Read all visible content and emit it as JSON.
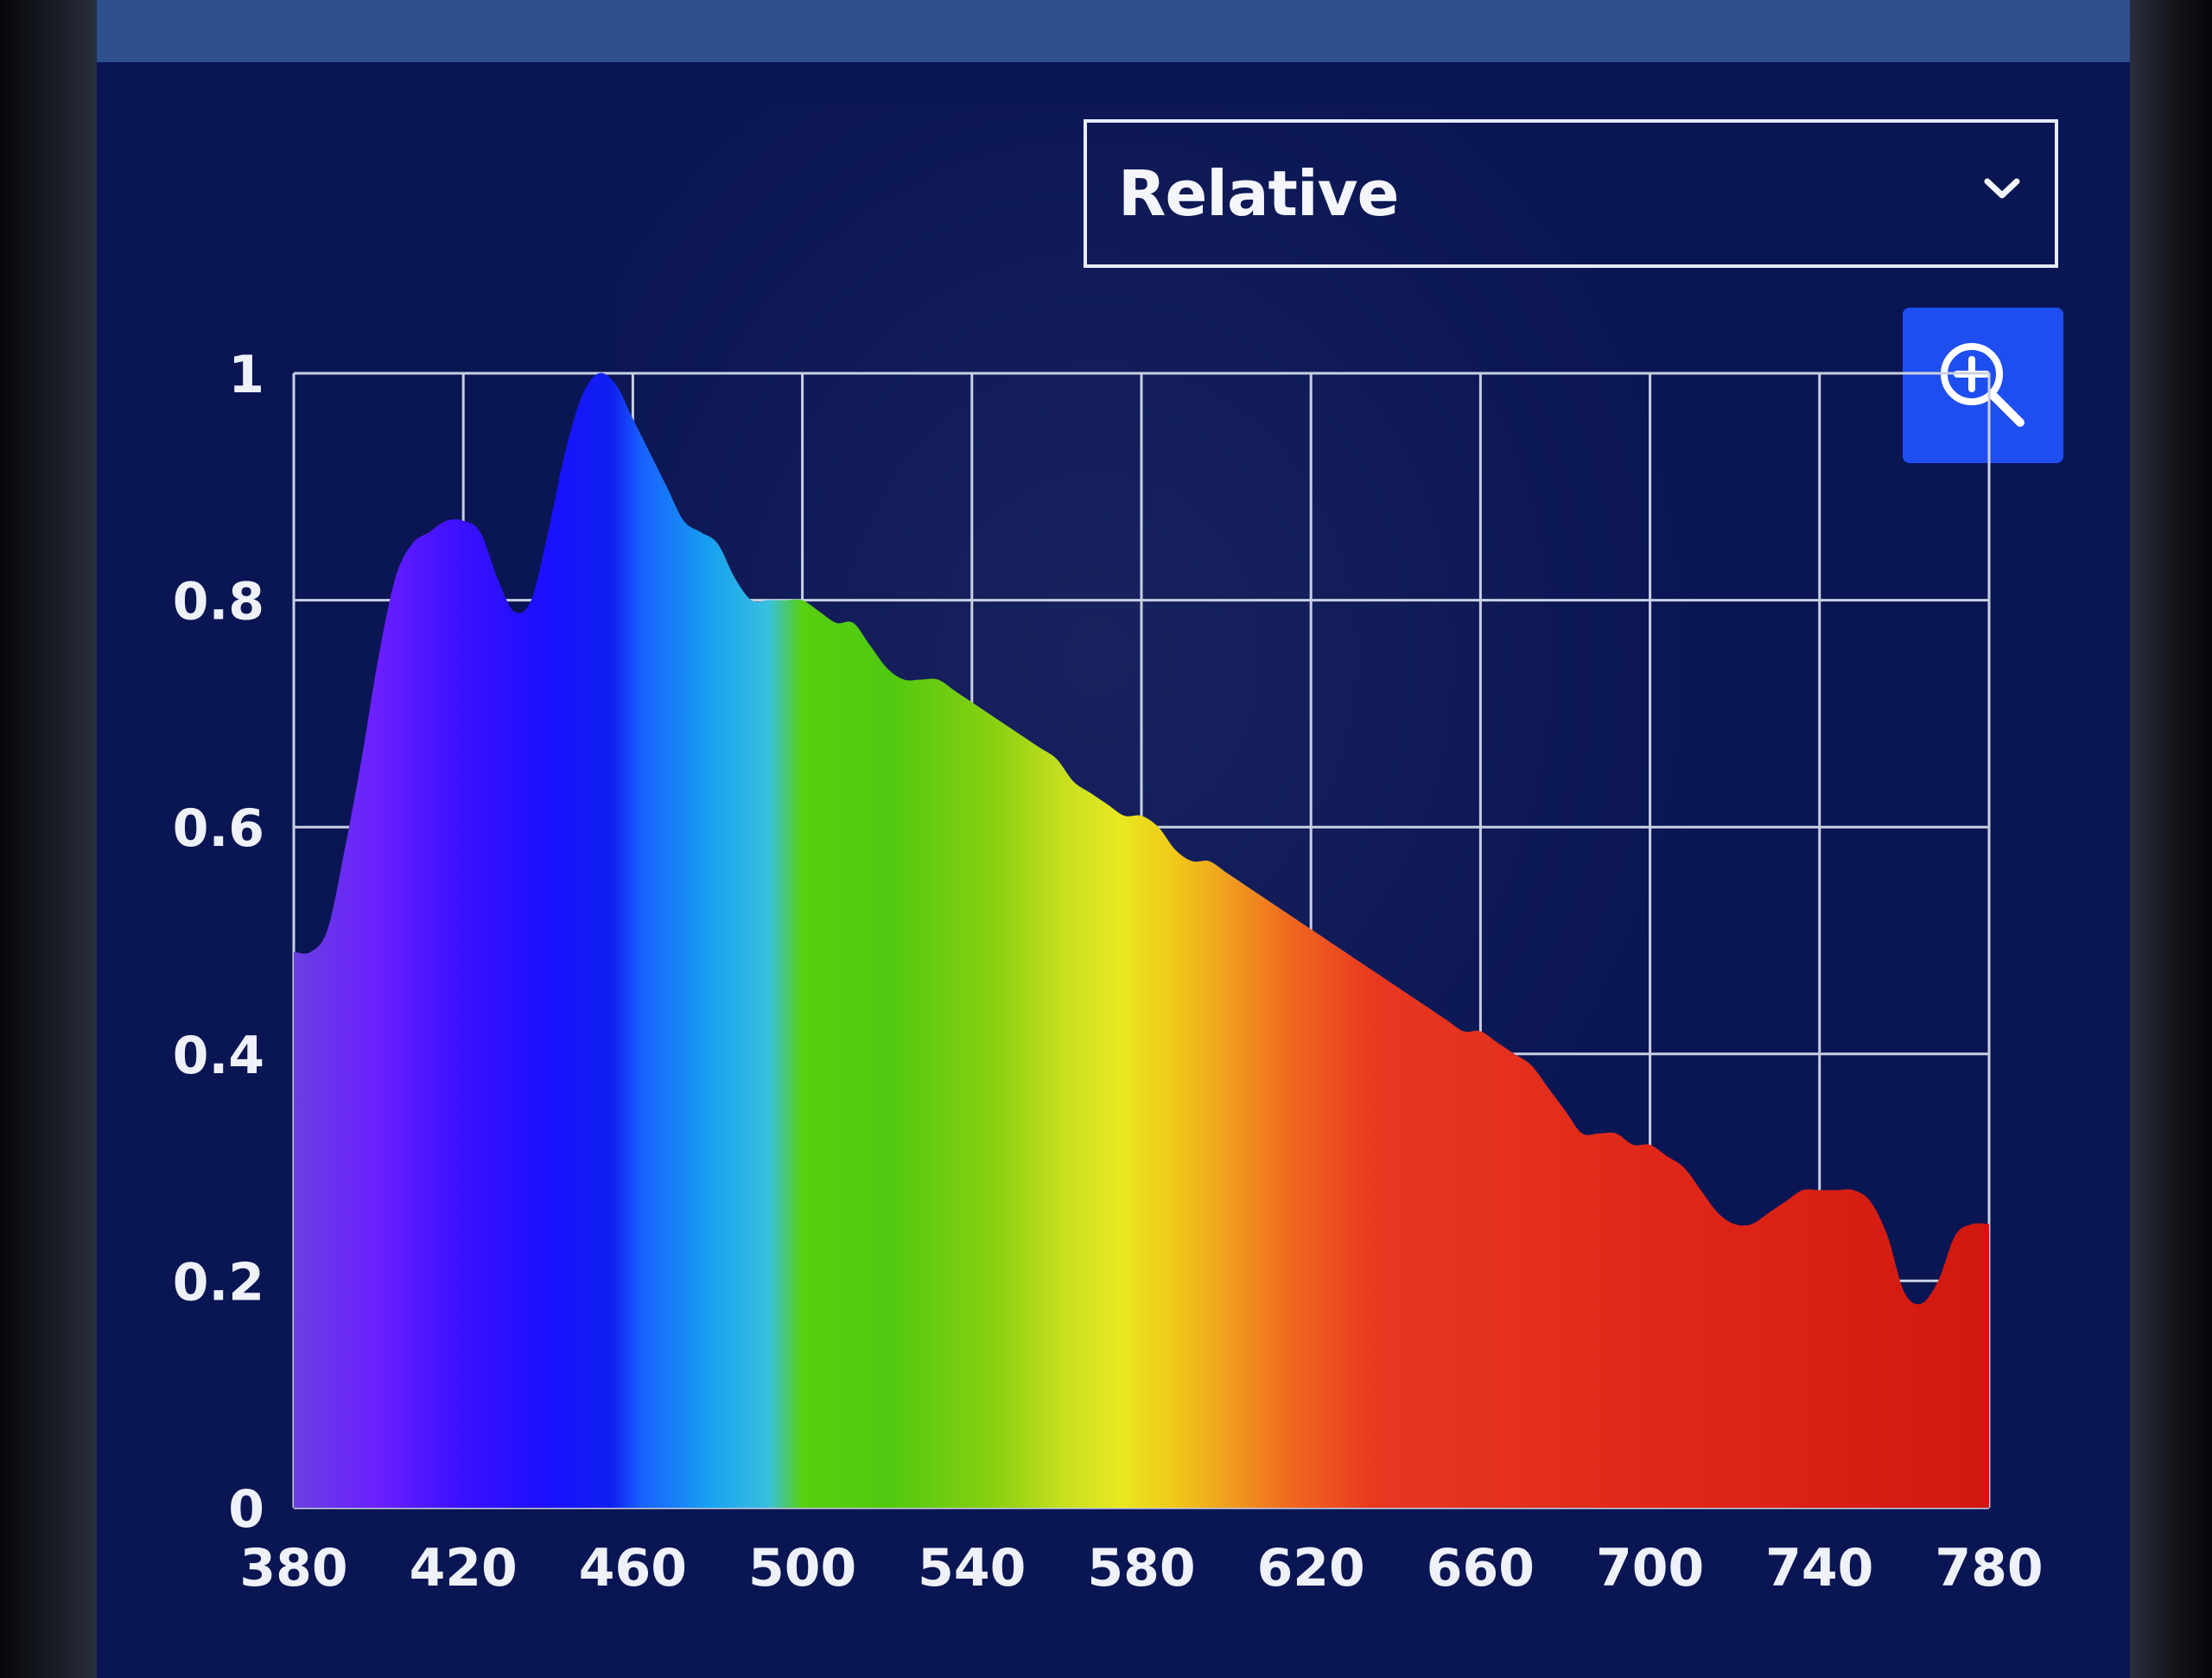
{
  "dropdown": {
    "selected": "Relative"
  },
  "zoom_button": {
    "icon": "zoom-in-icon"
  },
  "colors": {
    "screen_bg": "#0a1553",
    "grid": "#c9d0e3",
    "button": "#1f4ef0"
  },
  "chart_data": {
    "type": "area",
    "title": "",
    "xlabel": "",
    "ylabel": "",
    "xlim": [
      380,
      780
    ],
    "ylim": [
      0,
      1
    ],
    "grid": true,
    "x_ticks": [
      "380",
      "420",
      "460",
      "500",
      "540",
      "580",
      "620",
      "660",
      "700",
      "740",
      "780"
    ],
    "y_ticks": [
      "0",
      "0.2",
      "0.4",
      "0.6",
      "0.8",
      "1"
    ],
    "fill": "visible-spectrum gradient by wavelength",
    "series": [
      {
        "x": [
          380,
          384,
          388,
          392,
          396,
          400,
          404,
          408,
          412,
          416,
          420,
          424,
          428,
          432,
          436,
          440,
          444,
          448,
          452,
          456,
          460,
          464,
          468,
          472,
          476,
          480,
          484,
          488,
          492,
          496,
          500,
          504,
          508,
          512,
          516,
          520,
          524,
          528,
          532,
          536,
          540,
          544,
          548,
          552,
          556,
          560,
          564,
          568,
          572,
          576,
          580,
          584,
          588,
          592,
          596,
          600,
          604,
          608,
          612,
          616,
          620,
          624,
          628,
          632,
          636,
          640,
          644,
          648,
          652,
          656,
          660,
          664,
          668,
          672,
          676,
          680,
          684,
          688,
          692,
          696,
          700,
          704,
          708,
          712,
          716,
          720,
          724,
          728,
          732,
          736,
          740,
          744,
          748,
          752,
          756,
          760,
          764,
          768,
          772,
          776,
          780
        ],
        "y": [
          0.49,
          0.49,
          0.51,
          0.58,
          0.66,
          0.75,
          0.82,
          0.85,
          0.86,
          0.87,
          0.87,
          0.86,
          0.82,
          0.79,
          0.8,
          0.86,
          0.93,
          0.98,
          1.0,
          0.99,
          0.96,
          0.93,
          0.9,
          0.87,
          0.86,
          0.85,
          0.82,
          0.8,
          0.8,
          0.8,
          0.8,
          0.79,
          0.78,
          0.78,
          0.76,
          0.74,
          0.73,
          0.73,
          0.73,
          0.72,
          0.71,
          0.7,
          0.69,
          0.68,
          0.67,
          0.66,
          0.64,
          0.63,
          0.62,
          0.61,
          0.61,
          0.6,
          0.58,
          0.57,
          0.57,
          0.56,
          0.55,
          0.54,
          0.53,
          0.52,
          0.51,
          0.5,
          0.49,
          0.48,
          0.47,
          0.46,
          0.45,
          0.44,
          0.43,
          0.42,
          0.42,
          0.41,
          0.4,
          0.39,
          0.37,
          0.35,
          0.33,
          0.33,
          0.33,
          0.32,
          0.32,
          0.31,
          0.3,
          0.28,
          0.26,
          0.25,
          0.25,
          0.26,
          0.27,
          0.28,
          0.28,
          0.28,
          0.28,
          0.27,
          0.24,
          0.19,
          0.18,
          0.2,
          0.24,
          0.25,
          0.25
        ]
      }
    ]
  }
}
